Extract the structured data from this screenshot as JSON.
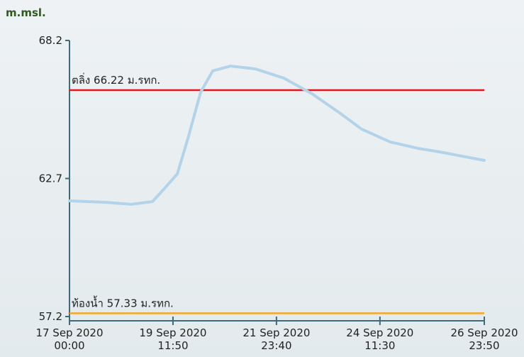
{
  "chart_data": {
    "type": "line",
    "y_label": "m.msl.",
    "x": [
      "2020-09-17T00:00",
      "2020-09-17T21:20",
      "2020-09-18T11:40",
      "2020-09-19T00:00",
      "2020-09-19T08:10",
      "2020-09-19T14:20",
      "2020-09-19T20:30",
      "2020-09-20T03:50",
      "2020-09-20T10:50",
      "2020-09-20T21:10",
      "2020-09-21T11:20",
      "2020-09-22T03:50",
      "2020-09-22T20:10",
      "2020-09-23T12:40",
      "2020-09-24T00:50",
      "2020-09-24T17:20",
      "2020-09-25T09:40",
      "2020-09-25T22:00",
      "2020-09-26T23:50"
    ],
    "series": [
      {
        "color": "#b3d3ea",
        "values": [
          61.81,
          61.75,
          61.67,
          61.78,
          62.4,
          62.88,
          64.3,
          66.14,
          66.99,
          67.18,
          67.07,
          66.7,
          66.08,
          65.29,
          64.67,
          64.16,
          63.9,
          63.76,
          63.42
        ]
      }
    ],
    "xlim": [
      "2020-09-17T00:00",
      "2020-09-26T23:50"
    ],
    "xticks": [
      {
        "value": "2020-09-17T00:00",
        "label": "17 Sep 2020\n00:00"
      },
      {
        "value": "2020-09-19T11:50",
        "label": "19 Sep 2020\n11:50"
      },
      {
        "value": "2020-09-21T23:40",
        "label": "21 Sep 2020\n23:40"
      },
      {
        "value": "2020-09-24T11:30",
        "label": "24 Sep 2020\n11:30"
      },
      {
        "value": "2020-09-26T23:50",
        "label": "26 Sep 2020\n23:50"
      }
    ],
    "ylim": [
      57.2,
      68.2
    ],
    "yticks": [
      57.2,
      62.7,
      68.2
    ],
    "reference_lines": [
      {
        "value": 66.22,
        "label": "ตลิ่ง 66.22 ม.รทก.",
        "color": "#e8141b"
      },
      {
        "value": 57.33,
        "label": "ท้องน้ำ 57.33 ม.รทก.",
        "color": "#f5a623"
      }
    ]
  }
}
